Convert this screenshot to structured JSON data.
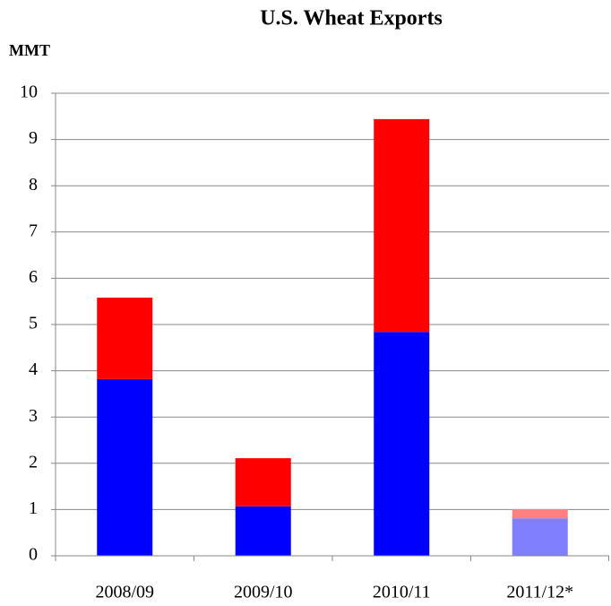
{
  "chart_data": {
    "type": "stacked_bar",
    "title": "U.S. Wheat Exports",
    "y_label": "MMT",
    "categories": [
      "2008/09",
      "2009/10",
      "2010/11",
      "2011/12*"
    ],
    "series": [
      {
        "colors": [
          "#0000ff",
          "#0000ff",
          "#0000ff",
          "#8080ff"
        ],
        "values": [
          3.82,
          1.07,
          4.84,
          0.81
        ]
      },
      {
        "colors": [
          "#ff0000",
          "#ff0000",
          "#ff0000",
          "#ff8080"
        ],
        "values": [
          1.76,
          1.04,
          4.6,
          0.2
        ]
      }
    ],
    "ylim": [
      0,
      10
    ],
    "yticks": [
      0,
      1,
      2,
      3,
      4,
      5,
      6,
      7,
      8,
      9,
      10
    ],
    "grid": true
  }
}
